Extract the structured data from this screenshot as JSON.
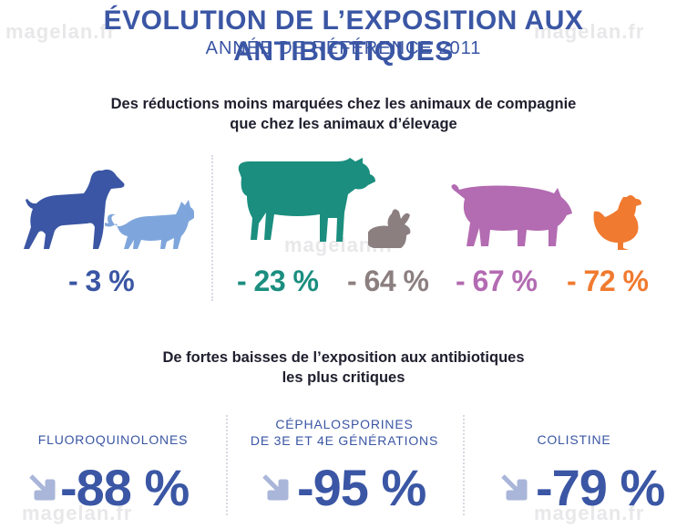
{
  "header": {
    "title": "ÉVOLUTION DE L’EXPOSITION AUX ANTIBIOTIQUES",
    "subtitle": "ANNÉE DE RÉFÉRENCE 2011"
  },
  "section1": {
    "line1": "Des réductions moins marquées chez les animaux de compagnie",
    "line2": "que chez les animaux d’élevage"
  },
  "animals": {
    "companion": {
      "value": "- 3 %",
      "color": "#3a56a4"
    },
    "cattle": {
      "value": "- 23 %",
      "color": "#1b8e7f"
    },
    "rabbit": {
      "value": "- 64 %",
      "color": "#8c7f80"
    },
    "pig": {
      "value": "- 67 %",
      "color": "#b36bb2"
    },
    "poultry": {
      "value": "- 72 %",
      "color": "#f07a2f"
    }
  },
  "section2": {
    "line1": "De fortes baisses de l’exposition aux antibiotiques",
    "line2": "les plus critiques"
  },
  "antibiotics": [
    {
      "label_line1": "FLUOROQUINOLONES",
      "label_line2": "",
      "value": "-88 %"
    },
    {
      "label_line1": "CÉPHALOSPORINES",
      "label_line2": "DE 3E ET 4E GÉNÉRATIONS",
      "value": "-95 %"
    },
    {
      "label_line1": "COLISTINE",
      "label_line2": "",
      "value": "-79 %"
    }
  ],
  "watermark": "magelan.fr",
  "colors": {
    "primary": "#3a56a4",
    "arrow": "#a9b6d9"
  },
  "icons": [
    "dog-icon",
    "cat-icon",
    "cow-icon",
    "rabbit-icon",
    "pig-icon",
    "chicken-icon",
    "down-right-arrow-icon"
  ]
}
